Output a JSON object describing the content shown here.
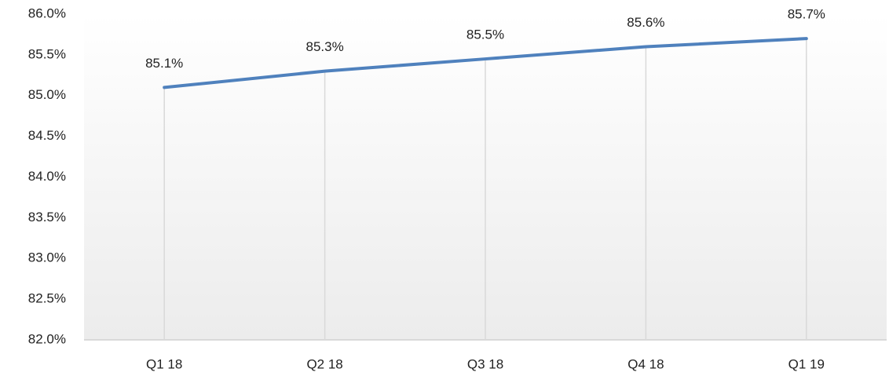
{
  "chart_data": {
    "type": "line",
    "categories": [
      "Q1 18",
      "Q2 18",
      "Q3 18",
      "Q4 18",
      "Q1 19"
    ],
    "values": [
      85.1,
      85.3,
      85.45,
      85.6,
      85.7
    ],
    "value_labels": [
      "85.1%",
      "85.3%",
      "85.5%",
      "85.6%",
      "85.7%"
    ],
    "color": "#4f81bd",
    "ylim": [
      82.0,
      86.0
    ],
    "yticks": [
      {
        "value": 82.0,
        "label": "82.0%"
      },
      {
        "value": 82.5,
        "label": "82.5%"
      },
      {
        "value": 83.0,
        "label": "83.0%"
      },
      {
        "value": 83.5,
        "label": "83.5%"
      },
      {
        "value": 84.0,
        "label": "84.0%"
      },
      {
        "value": 84.5,
        "label": "84.5%"
      },
      {
        "value": 85.0,
        "label": "85.0%"
      },
      {
        "value": 85.5,
        "label": "85.5%"
      },
      {
        "value": 86.0,
        "label": "86.0%"
      }
    ],
    "grid": false,
    "drop_lines": true
  }
}
